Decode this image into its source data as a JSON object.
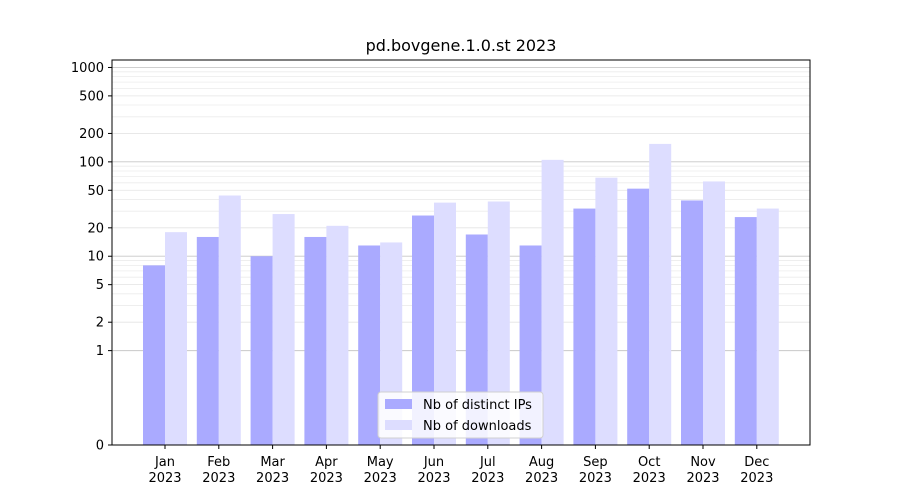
{
  "chart_data": {
    "type": "bar",
    "title": "pd.bovgene.1.0.st 2023",
    "xlabel": "",
    "ylabel": "",
    "yscale": "symlog",
    "ylim": [
      0,
      1200
    ],
    "y_ticks": [
      0,
      1,
      2,
      5,
      10,
      20,
      50,
      100,
      200,
      500,
      1000
    ],
    "y_tick_labels": [
      "0",
      "1",
      "2",
      "5",
      "10",
      "20",
      "50",
      "100",
      "200",
      "500",
      "1000"
    ],
    "categories": [
      "Jan\n2023",
      "Feb\n2023",
      "Mar\n2023",
      "Apr\n2023",
      "May\n2023",
      "Jun\n2023",
      "Jul\n2023",
      "Aug\n2023",
      "Sep\n2023",
      "Oct\n2023",
      "Nov\n2023",
      "Dec\n2023"
    ],
    "category_labels": [
      [
        "Jan",
        "2023"
      ],
      [
        "Feb",
        "2023"
      ],
      [
        "Mar",
        "2023"
      ],
      [
        "Apr",
        "2023"
      ],
      [
        "May",
        "2023"
      ],
      [
        "Jun",
        "2023"
      ],
      [
        "Jul",
        "2023"
      ],
      [
        "Aug",
        "2023"
      ],
      [
        "Sep",
        "2023"
      ],
      [
        "Oct",
        "2023"
      ],
      [
        "Nov",
        "2023"
      ],
      [
        "Dec",
        "2023"
      ]
    ],
    "series": [
      {
        "name": "Nb of distinct IPs",
        "color": "#aaaaff",
        "values": [
          8,
          16,
          10,
          16,
          13,
          27,
          17,
          13,
          32,
          52,
          39,
          26
        ]
      },
      {
        "name": "Nb of downloads",
        "color": "#ddddff",
        "values": [
          18,
          44,
          28,
          21,
          14,
          37,
          38,
          105,
          68,
          155,
          62,
          32
        ]
      }
    ],
    "legend_position": "lower center",
    "grid": true
  }
}
